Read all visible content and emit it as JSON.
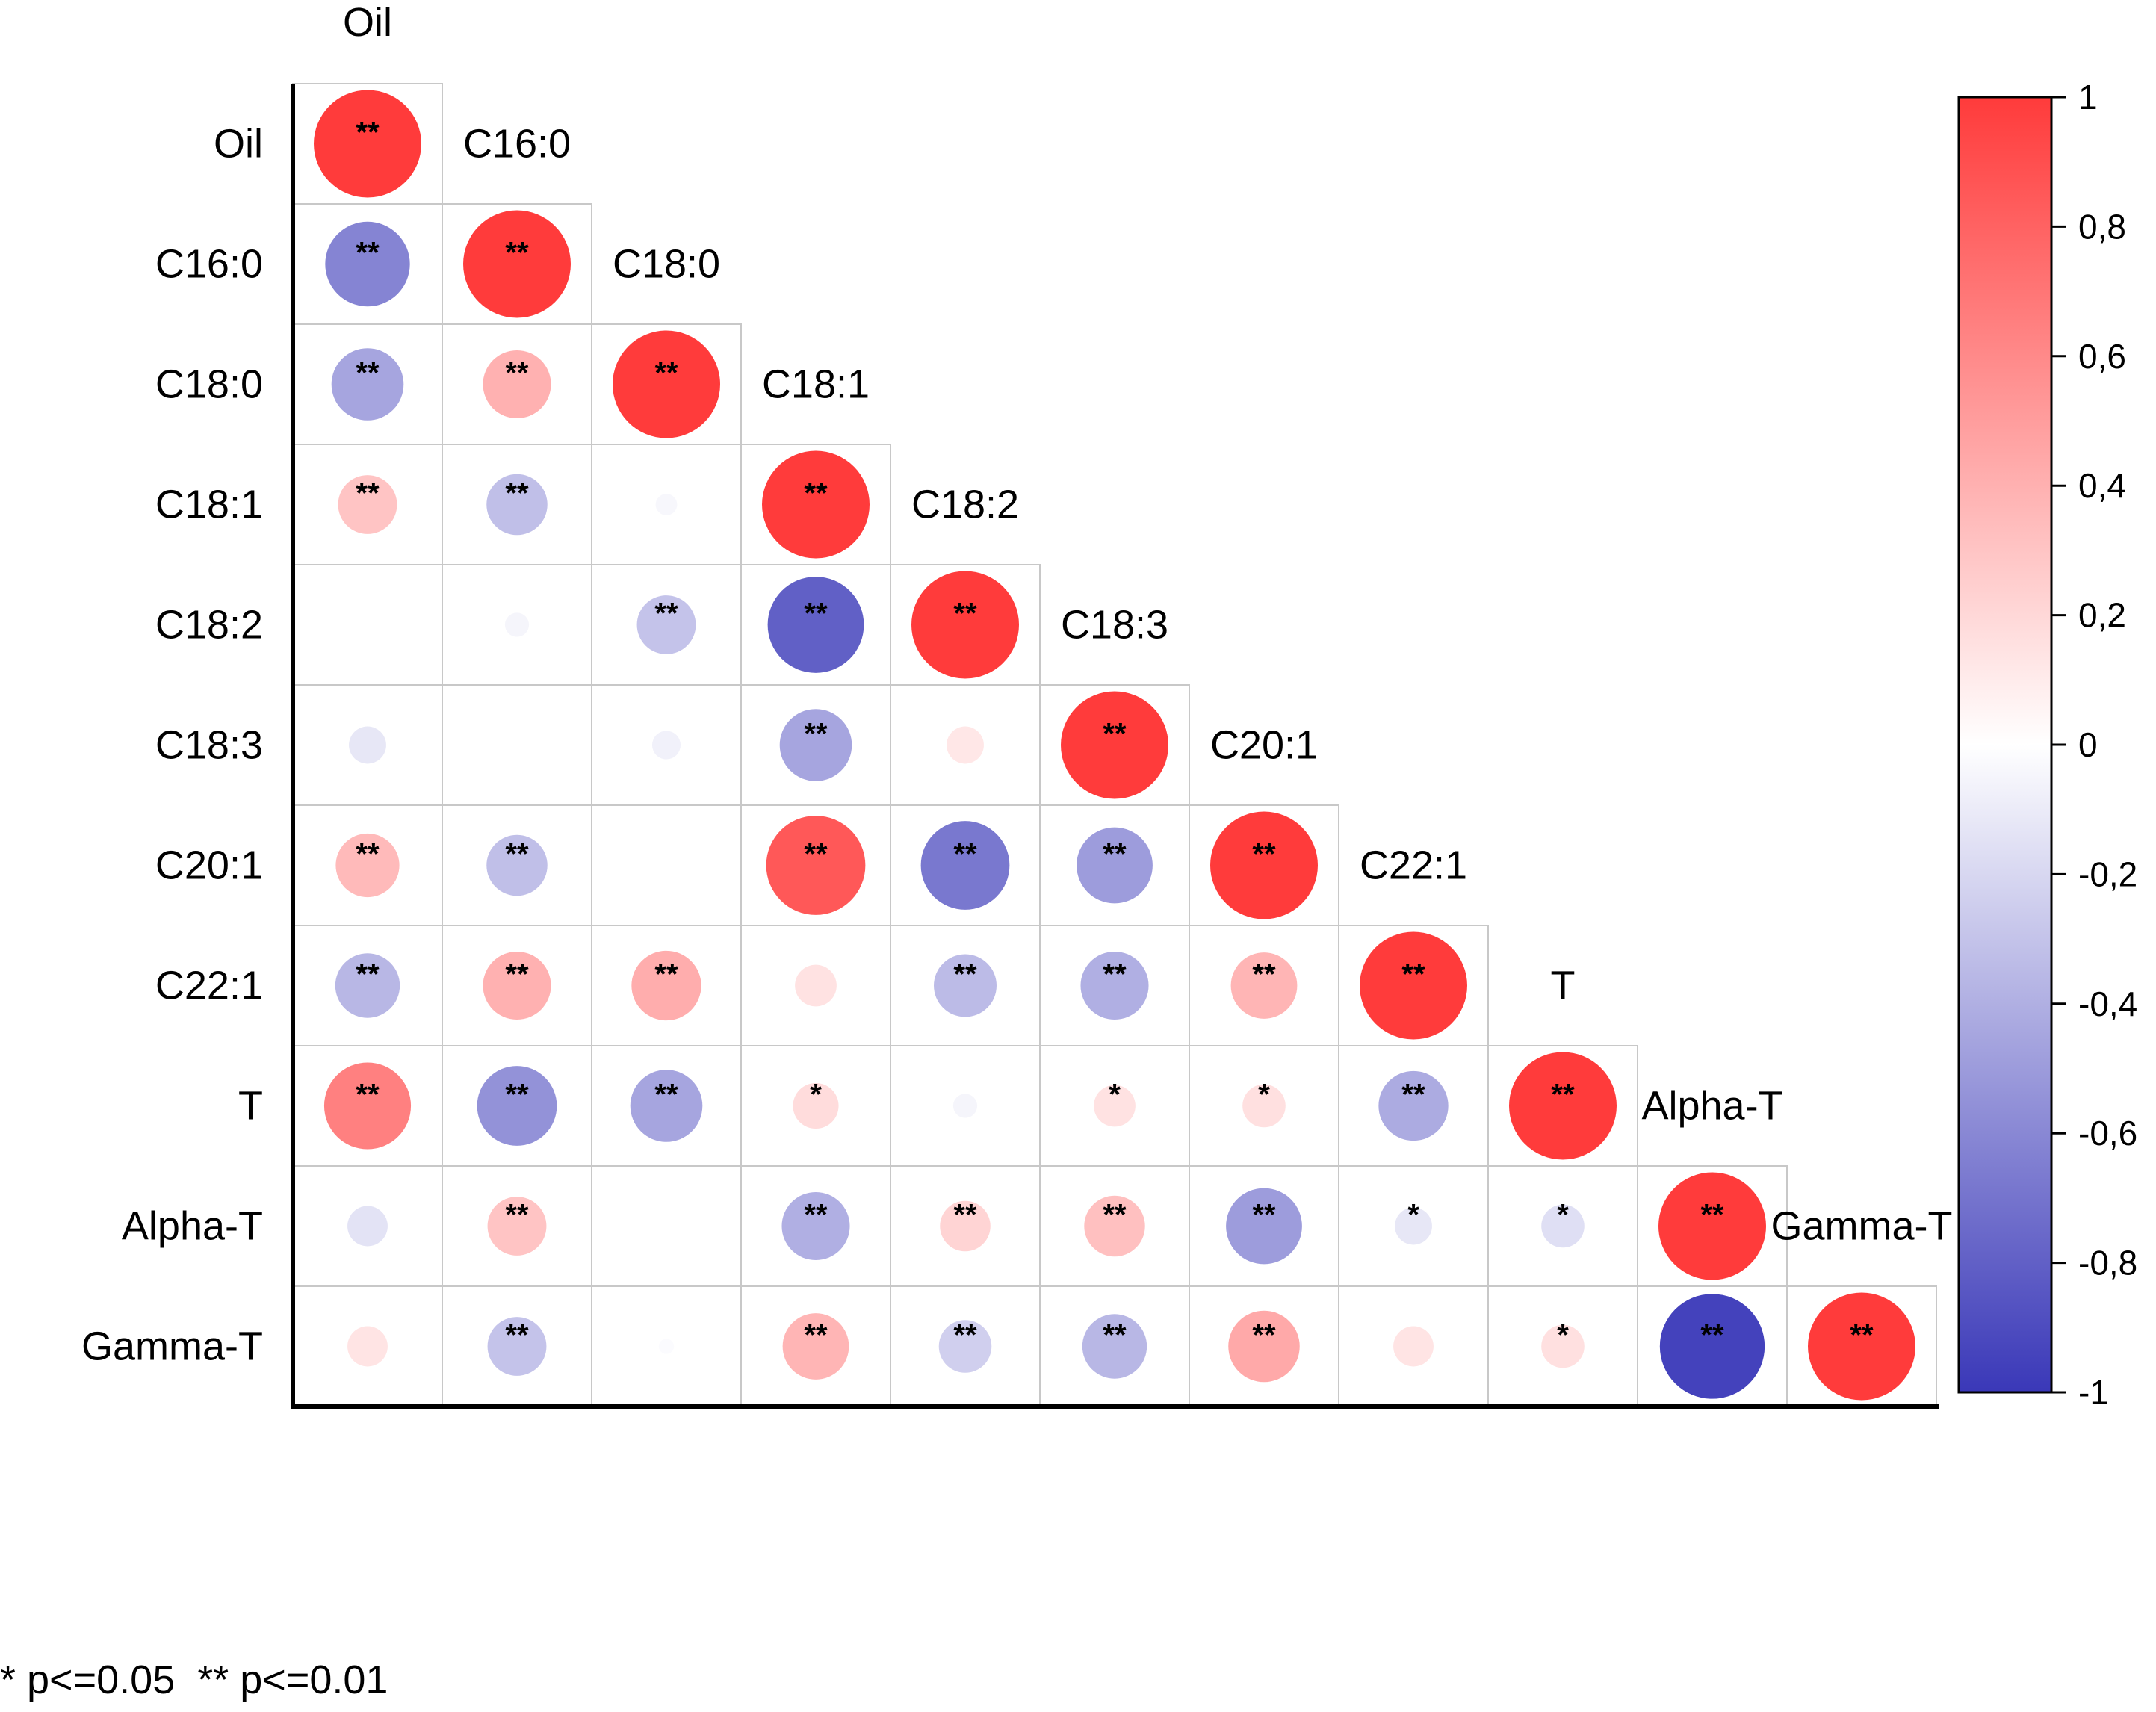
{
  "chart_data": {
    "type": "heatmap",
    "variables": [
      "Oil",
      "C16:0",
      "C18:0",
      "C18:1",
      "C18:2",
      "C18:3",
      "C20:1",
      "C22:1",
      "T",
      "Alpha-T",
      "Gamma-T"
    ],
    "matrix": [
      [
        1.0
      ],
      [
        -0.62,
        1.0
      ],
      [
        -0.45,
        0.4,
        1.0
      ],
      [
        0.3,
        -0.32,
        -0.04,
        1.0
      ],
      [
        0.0,
        -0.05,
        -0.3,
        -0.8,
        1.0
      ],
      [
        -0.12,
        0.0,
        -0.07,
        -0.45,
        0.12,
        1.0
      ],
      [
        0.35,
        -0.32,
        0.0,
        0.85,
        -0.68,
        -0.5,
        1.0
      ],
      [
        -0.36,
        0.4,
        0.42,
        0.15,
        -0.34,
        -0.4,
        0.38,
        1.0
      ],
      [
        0.65,
        -0.55,
        -0.45,
        0.18,
        -0.05,
        0.15,
        0.16,
        -0.42,
        1.0
      ],
      [
        -0.14,
        0.3,
        0.0,
        -0.4,
        0.22,
        0.32,
        -0.5,
        -0.12,
        -0.16,
        1.0
      ],
      [
        0.14,
        -0.3,
        -0.02,
        0.38,
        -0.24,
        -0.36,
        0.44,
        0.14,
        0.16,
        -0.95,
        1.0
      ]
    ],
    "significance": [
      [
        "**"
      ],
      [
        "**",
        "**"
      ],
      [
        "**",
        "**",
        "**"
      ],
      [
        "**",
        "**",
        "",
        "**"
      ],
      [
        "",
        "",
        "**",
        "**",
        "**"
      ],
      [
        "",
        "",
        "",
        "**",
        "",
        "**"
      ],
      [
        "**",
        "**",
        "",
        "**",
        "**",
        "**",
        "**"
      ],
      [
        "**",
        "**",
        "**",
        "",
        "**",
        "**",
        "**",
        "**"
      ],
      [
        "**",
        "**",
        "**",
        "*",
        "",
        "*",
        "*",
        "**",
        "**"
      ],
      [
        "",
        "**",
        "",
        "**",
        "**",
        "**",
        "**",
        "*",
        "*",
        "**"
      ],
      [
        "",
        "**",
        "",
        "**",
        "**",
        "**",
        "**",
        "",
        "*",
        "**",
        "**"
      ]
    ],
    "colorbar": {
      "range": [
        -1,
        1
      ],
      "ticks": [
        "1",
        "0,8",
        "0,6",
        "0,4",
        "0,2",
        "0",
        "-0,2",
        "-0,4",
        "-0,6",
        "-0,8",
        "-1"
      ],
      "color_max": "#ff3b3b",
      "color_mid": "#ffffff",
      "color_min": "#3a38b8"
    },
    "footnote": "* p<=0.05  ** p<=0.01"
  }
}
